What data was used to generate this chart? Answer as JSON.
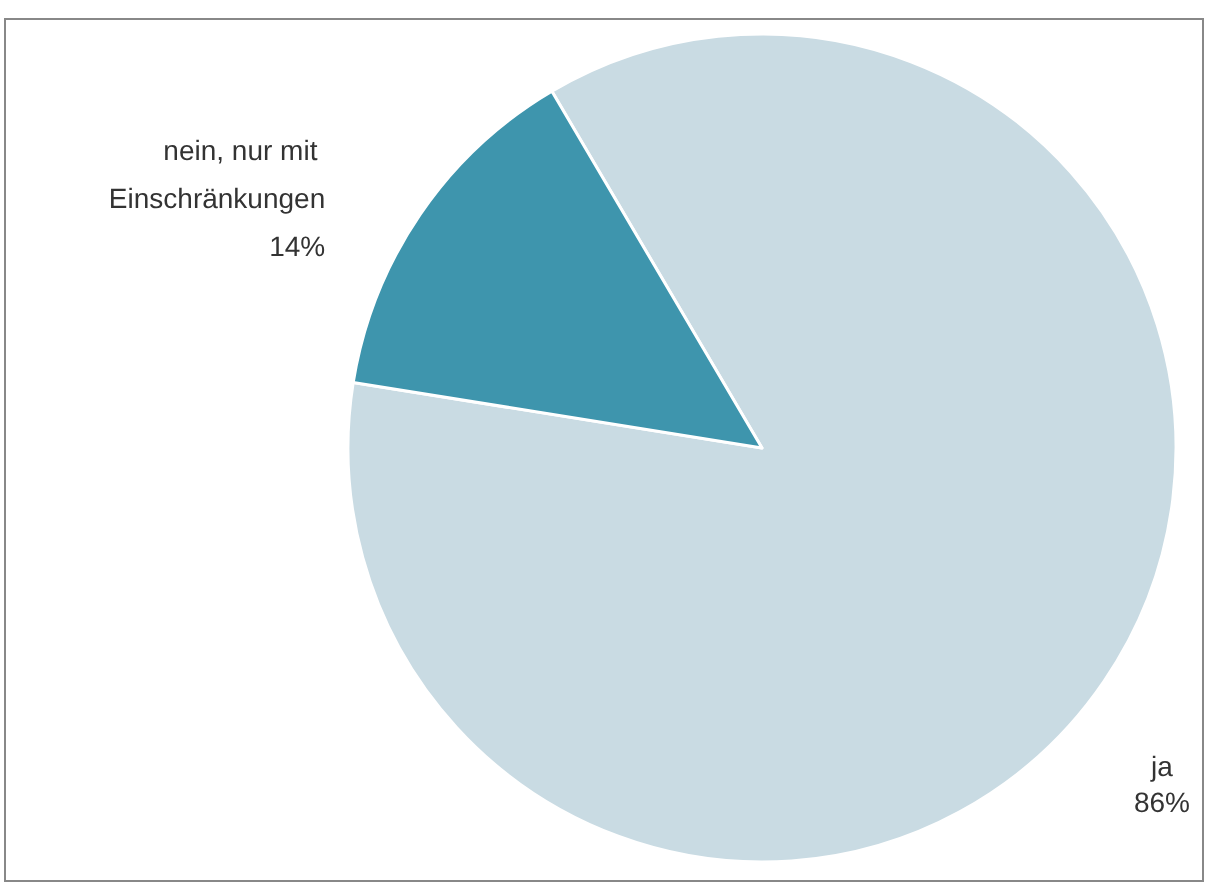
{
  "chart_data": {
    "type": "pie",
    "categories": [
      "ja",
      "nein, nur mit Einschränkungen"
    ],
    "values": [
      86,
      14
    ],
    "colors": [
      "#c9dbe3",
      "#3e95ad"
    ],
    "value_labels": [
      "86%",
      "14%"
    ],
    "legend": false
  }
}
